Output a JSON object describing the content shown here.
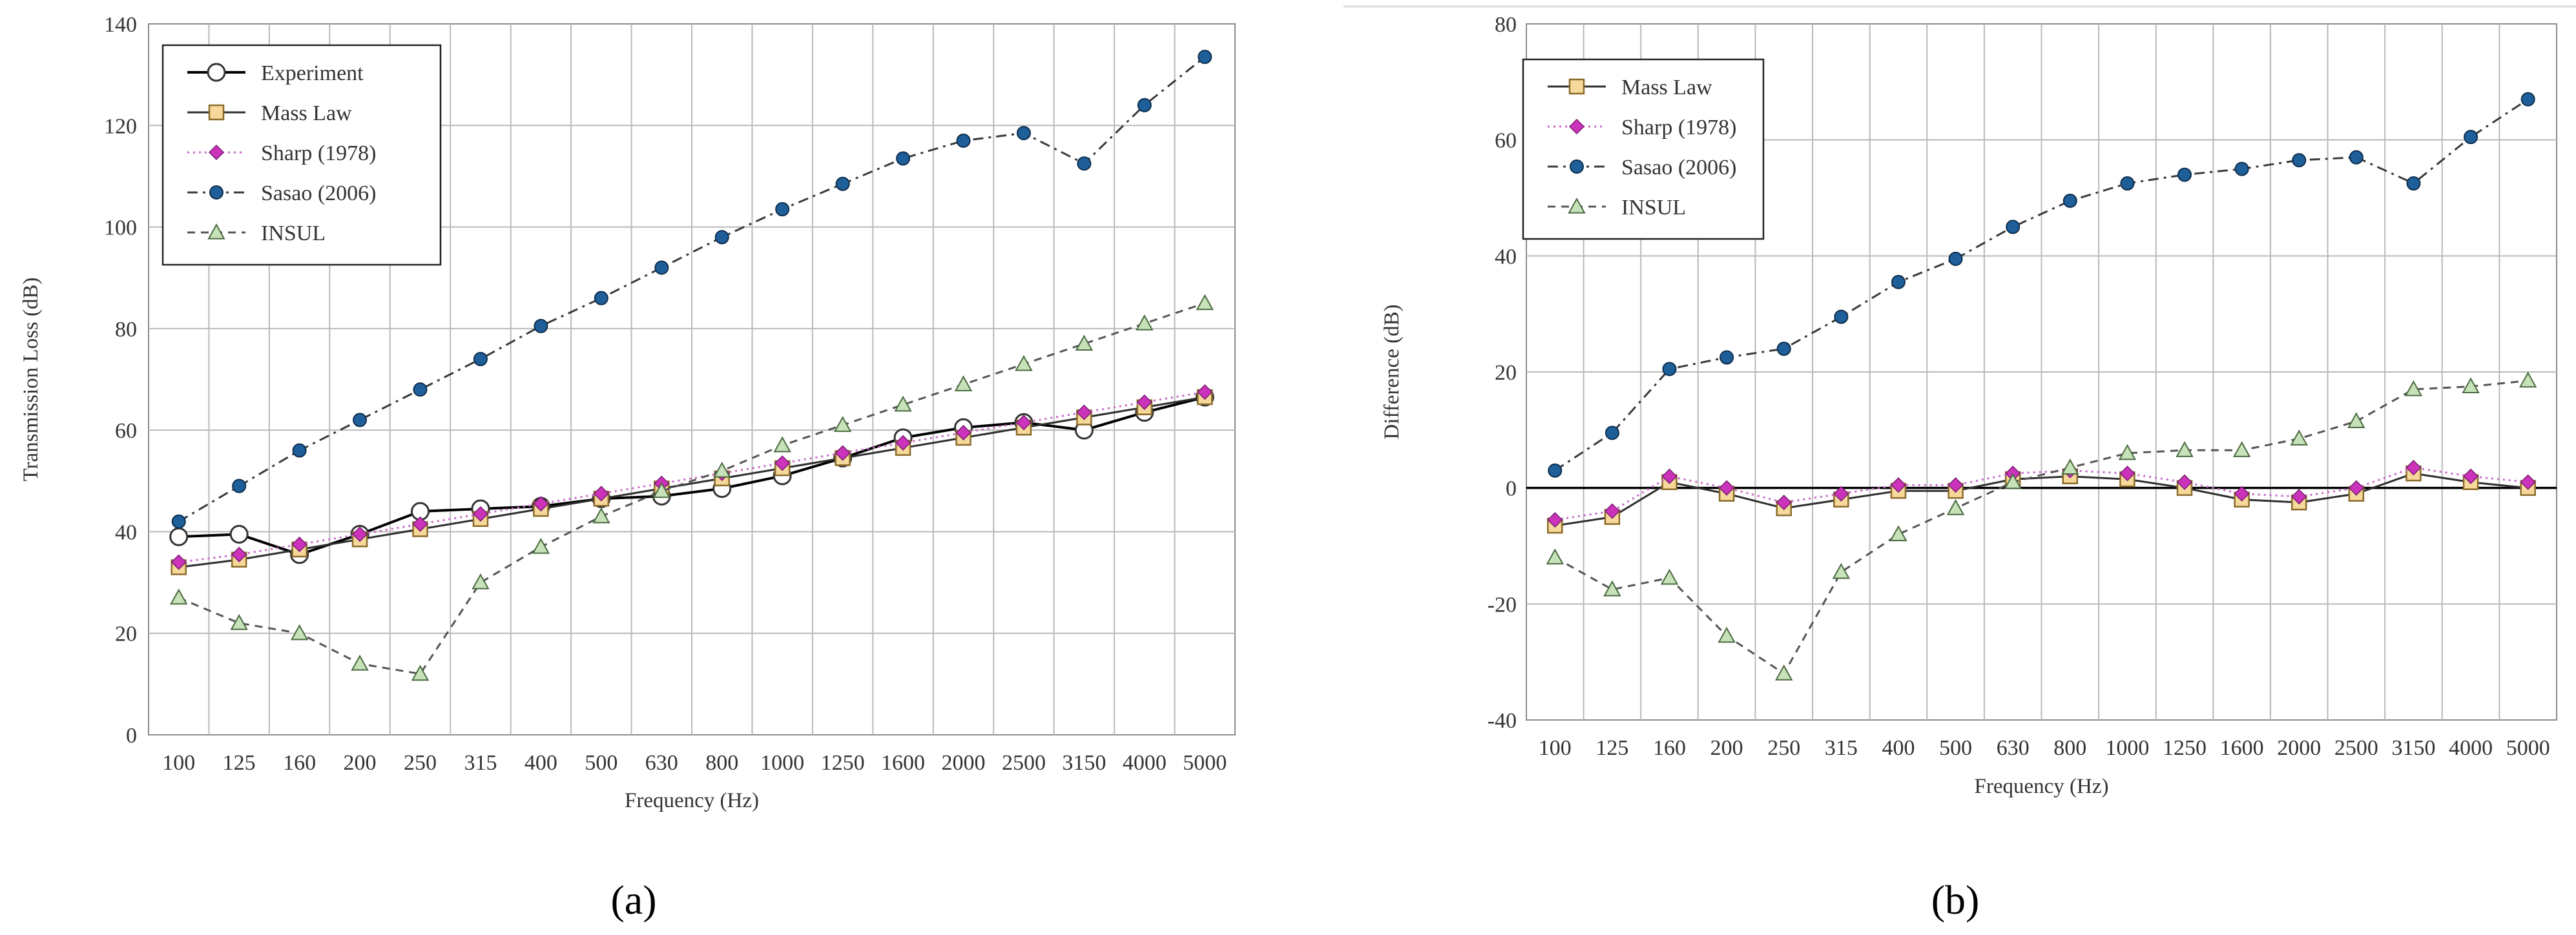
{
  "colors": {
    "grid": "#b9b9b9",
    "axis": "#8c8c8c",
    "text": "#333333",
    "experiment_stroke": "#000000",
    "experiment_fill": "#ffffff",
    "mass_law_stroke": "#2e2e2e",
    "mass_law_marker": "#f5d89a",
    "mass_law_marker_edge": "#8a6a2a",
    "sharp_stroke": "#c86ac8",
    "sharp_marker": "#cc33bb",
    "sasao_stroke": "#3a3a3a",
    "sasao_marker": "#1f5f99",
    "insul_stroke": "#555555",
    "insul_marker": "#c7e2b8",
    "insul_marker_edge": "#4a6a40",
    "zero_line": "#000000"
  },
  "chart_data": [
    {
      "id": "a",
      "type": "line",
      "panel_label": "(a)",
      "title": "",
      "xlabel": "Frequency (Hz)",
      "ylabel": "Transmission Loss (dB)",
      "ylim": [
        0,
        140
      ],
      "yticks": [
        0,
        20,
        40,
        60,
        80,
        100,
        120,
        140
      ],
      "categories": [
        "100",
        "125",
        "160",
        "200",
        "250",
        "315",
        "400",
        "500",
        "630",
        "800",
        "1000",
        "1250",
        "1600",
        "2000",
        "2500",
        "3150",
        "4000",
        "5000"
      ],
      "grid": true,
      "legend_position": "top-left",
      "series": [
        {
          "name": "Experiment",
          "key": "experiment",
          "marker": "circle-open",
          "dash": "solid",
          "values": [
            39,
            39.5,
            35.5,
            39.5,
            44,
            44.5,
            45,
            46.5,
            47,
            48.5,
            51,
            54.5,
            58.5,
            60.5,
            61.5,
            60,
            63.5,
            66.5
          ]
        },
        {
          "name": "Mass Law",
          "key": "mass_law",
          "marker": "square",
          "dash": "solid",
          "values": [
            33,
            34.5,
            36.5,
            38.5,
            40.5,
            42.5,
            44.5,
            46.5,
            48.5,
            50.5,
            52.5,
            54.5,
            56.5,
            58.5,
            60.5,
            62.5,
            64.5,
            66.5
          ]
        },
        {
          "name": "Sharp (1978)",
          "key": "sharp",
          "marker": "diamond",
          "dash": "dotted",
          "values": [
            34,
            35.5,
            37.5,
            39.5,
            41.5,
            43.5,
            45.5,
            47.5,
            49.5,
            51.5,
            53.5,
            55.5,
            57.5,
            59.5,
            61.5,
            63.5,
            65.5,
            67.5
          ]
        },
        {
          "name": "Sasao (2006)",
          "key": "sasao",
          "marker": "circle",
          "dash": "dashdot",
          "values": [
            42,
            49,
            56,
            62,
            68,
            74,
            80.5,
            86,
            92,
            98,
            103.5,
            108.5,
            113.5,
            117,
            118.5,
            112.5,
            124,
            133.5
          ]
        },
        {
          "name": "INSUL",
          "key": "insul",
          "marker": "triangle",
          "dash": "dashed",
          "values": [
            27,
            22,
            20,
            14,
            12,
            30,
            37,
            43,
            48,
            52,
            57,
            61,
            65,
            69,
            73,
            77,
            81,
            85
          ]
        }
      ]
    },
    {
      "id": "b",
      "type": "line",
      "panel_label": "(b)",
      "title": "",
      "xlabel": "Frequency (Hz)",
      "ylabel": "Difference (dB)",
      "ylim": [
        -40,
        80
      ],
      "yticks": [
        -40,
        -20,
        0,
        20,
        40,
        60,
        80
      ],
      "categories": [
        "100",
        "125",
        "160",
        "200",
        "250",
        "315",
        "400",
        "500",
        "630",
        "800",
        "1000",
        "1250",
        "1600",
        "2000",
        "2500",
        "3150",
        "4000",
        "5000"
      ],
      "grid": true,
      "legend_position": "top-left",
      "series": [
        {
          "name": "Mass Law",
          "key": "mass_law",
          "marker": "square",
          "dash": "solid",
          "values": [
            -6.5,
            -5,
            1,
            -1,
            -3.5,
            -2,
            -0.5,
            -0.5,
            1.5,
            2,
            1.5,
            0,
            -2,
            -2.5,
            -1,
            2.5,
            1,
            0
          ]
        },
        {
          "name": "Sharp (1978)",
          "key": "sharp",
          "marker": "diamond",
          "dash": "dotted",
          "values": [
            -5.5,
            -4,
            2,
            0,
            -2.5,
            -1,
            0.5,
            0.5,
            2.5,
            3,
            2.5,
            1,
            -1,
            -1.5,
            0,
            3.5,
            2,
            1
          ]
        },
        {
          "name": "Sasao (2006)",
          "key": "sasao",
          "marker": "circle",
          "dash": "dashdot",
          "values": [
            3,
            9.5,
            20.5,
            22.5,
            24,
            29.5,
            35.5,
            39.5,
            45,
            49.5,
            52.5,
            54,
            55,
            56.5,
            57,
            52.5,
            60.5,
            67
          ]
        },
        {
          "name": "INSUL",
          "key": "insul",
          "marker": "triangle",
          "dash": "dashed",
          "values": [
            -12,
            -17.5,
            -15.5,
            -25.5,
            -32,
            -14.5,
            -8,
            -3.5,
            1,
            3.5,
            6,
            6.5,
            6.5,
            8.5,
            11.5,
            17,
            17.5,
            18.5
          ]
        }
      ]
    }
  ]
}
